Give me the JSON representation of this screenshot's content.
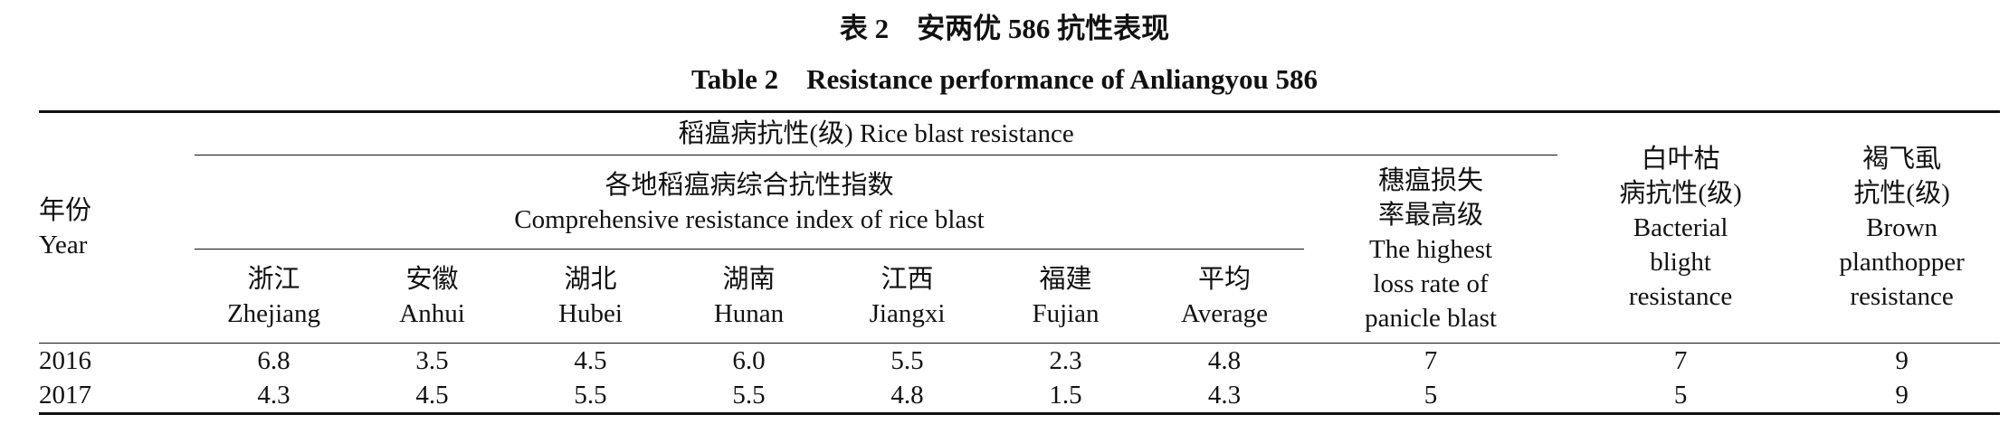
{
  "title": {
    "zh": "表 2　安两优 586 抗性表现",
    "en": "Table 2　Resistance performance of Anliangyou 586"
  },
  "table": {
    "header": {
      "year": {
        "zh": "年份",
        "en": "Year"
      },
      "rice_blast": {
        "zh": "稻瘟病抗性(级)",
        "en": "Rice blast resistance"
      },
      "comprehensive": {
        "zh": "各地稻瘟病综合抗性指数",
        "en": "Comprehensive resistance index of rice blast"
      },
      "regions": [
        {
          "zh": "浙江",
          "en": "Zhejiang"
        },
        {
          "zh": "安徽",
          "en": "Anhui"
        },
        {
          "zh": "湖北",
          "en": "Hubei"
        },
        {
          "zh": "湖南",
          "en": "Hunan"
        },
        {
          "zh": "江西",
          "en": "Jiangxi"
        },
        {
          "zh": "福建",
          "en": "Fujian"
        },
        {
          "zh": "平均",
          "en": "Average"
        }
      ],
      "panicle": {
        "zh": [
          "穗瘟损失",
          "率最高级"
        ],
        "en": [
          "The highest",
          "loss rate of",
          "panicle blast"
        ]
      },
      "bacterial": {
        "zh": [
          "白叶枯",
          "病抗性(级)"
        ],
        "en": [
          "Bacterial",
          "blight",
          "resistance"
        ]
      },
      "bph": {
        "zh": [
          "褐飞虱",
          "抗性(级)"
        ],
        "en": [
          "Brown",
          "planthopper",
          "resistance"
        ]
      }
    },
    "rows": [
      [
        "2016",
        "6.8",
        "3.5",
        "4.5",
        "6.0",
        "5.5",
        "2.3",
        "4.8",
        "7",
        "7",
        "9"
      ],
      [
        "2017",
        "4.3",
        "4.5",
        "5.5",
        "5.5",
        "4.8",
        "1.5",
        "4.3",
        "5",
        "5",
        "9"
      ]
    ]
  }
}
